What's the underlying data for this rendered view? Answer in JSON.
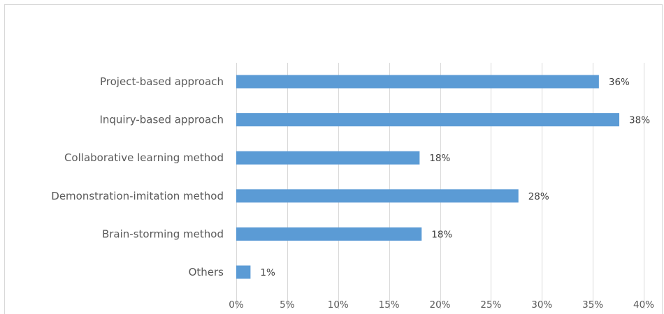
{
  "chart_data": {
    "type": "bar",
    "orientation": "horizontal",
    "title": "",
    "xlabel": "",
    "ylabel": "",
    "categories": [
      "Project-based approach",
      "Inquiry-based approach",
      "Collaborative learning method",
      "Demonstration-imitation method",
      "Brain-storming method",
      "Others"
    ],
    "values": [
      35.6,
      37.6,
      18,
      27.7,
      18.2,
      1.4
    ],
    "data_labels": [
      "36%",
      "38%",
      "18%",
      "28%",
      "18%",
      "1%"
    ],
    "xlim": [
      0,
      40
    ],
    "x_ticks": [
      0,
      5,
      10,
      15,
      20,
      25,
      30,
      35,
      40
    ],
    "x_tick_labels": [
      "0%",
      "5%",
      "10%",
      "15%",
      "20%",
      "25%",
      "30%",
      "35%",
      "40%"
    ],
    "grid": "vertical",
    "legend": "none",
    "bar_color": "#5b9bd5",
    "grid_color": "#d9d9d9"
  }
}
